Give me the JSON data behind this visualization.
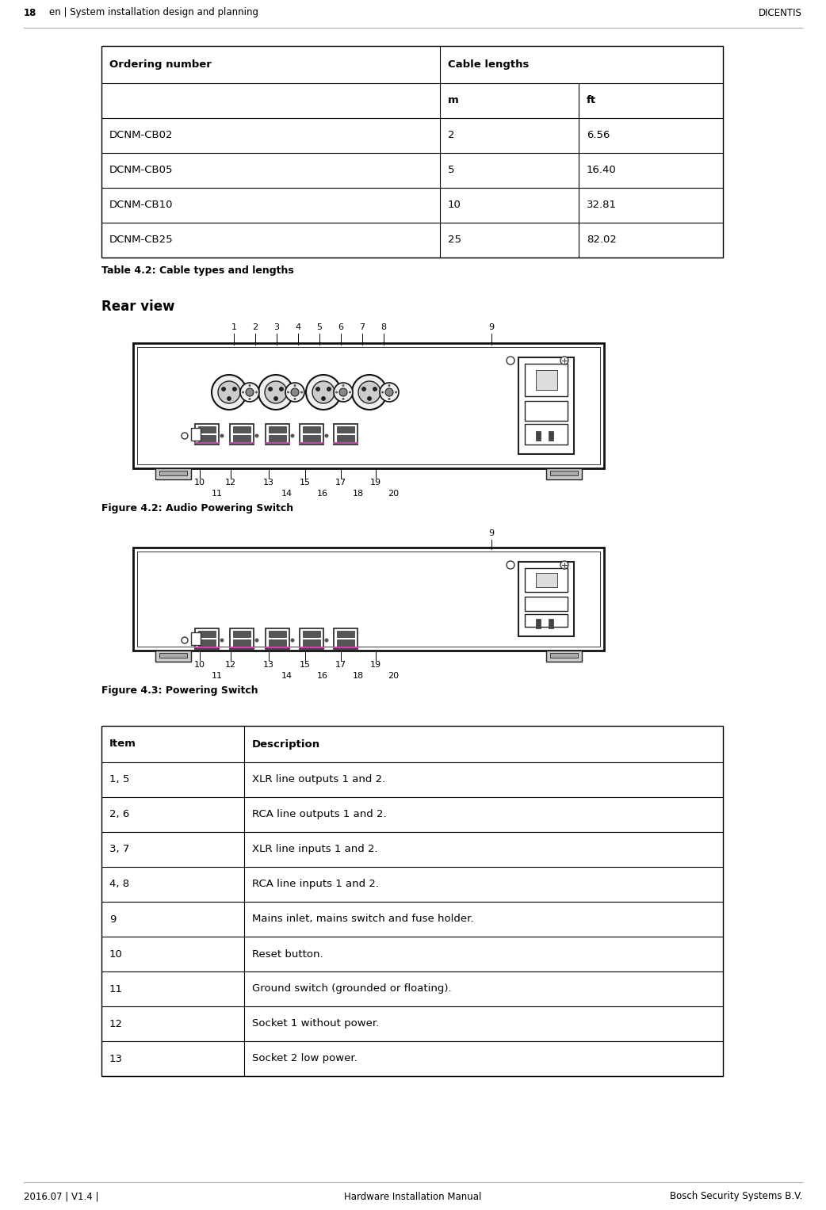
{
  "page_number": "18",
  "header_left": "en | System installation design and planning",
  "header_right": "DICENTIS",
  "footer_left": "2016.07 | V1.4 |",
  "footer_center": "Hardware Installation Manual",
  "footer_right": "Bosch Security Systems B.V.",
  "table1_col1_header": "Ordering number",
  "table1_col2_header": "Cable lengths",
  "table1_sub_m": "m",
  "table1_sub_ft": "ft",
  "table1_rows": [
    [
      "DCNM-CB02",
      "2",
      "6.56"
    ],
    [
      "DCNM-CB05",
      "5",
      "16.40"
    ],
    [
      "DCNM-CB10",
      "10",
      "32.81"
    ],
    [
      "DCNM-CB25",
      "25",
      "82.02"
    ]
  ],
  "table1_caption": "Table 4.2: Cable types and lengths",
  "section_rear_view": "Rear view",
  "fig42_caption": "Figure 4.2: Audio Powering Switch",
  "fig43_caption": "Figure 4.3: Powering Switch",
  "table2_headers": [
    "Item",
    "Description"
  ],
  "table2_rows": [
    [
      "1, 5",
      "XLR line outputs 1 and 2."
    ],
    [
      "2, 6",
      "RCA line outputs 1 and 2."
    ],
    [
      "3, 7",
      "XLR line inputs 1 and 2."
    ],
    [
      "4, 8",
      "RCA line inputs 1 and 2."
    ],
    [
      "9",
      "Mains inlet, mains switch and fuse holder."
    ],
    [
      "10",
      "Reset button."
    ],
    [
      "11",
      "Ground switch (grounded or floating)."
    ],
    [
      "12",
      "Socket 1 without power."
    ],
    [
      "13",
      "Socket 2 low power."
    ]
  ],
  "bg_color": "#ffffff",
  "table_border_color": "#000000",
  "text_color": "#000000",
  "fig42_nums_above": [
    [
      295,
      "1"
    ],
    [
      322,
      "2"
    ],
    [
      349,
      "3"
    ],
    [
      376,
      "4"
    ],
    [
      403,
      "5"
    ],
    [
      430,
      "6"
    ],
    [
      457,
      "7"
    ],
    [
      484,
      "8"
    ],
    [
      620,
      "9"
    ]
  ],
  "fig42_nums_row1": [
    [
      252,
      "10"
    ],
    [
      291,
      "12"
    ],
    [
      339,
      "13"
    ],
    [
      385,
      "15"
    ],
    [
      430,
      "17"
    ],
    [
      474,
      "19"
    ]
  ],
  "fig42_nums_row2": [
    [
      274,
      "11"
    ],
    [
      362,
      "14"
    ],
    [
      407,
      "16"
    ],
    [
      452,
      "18"
    ],
    [
      496,
      "20"
    ]
  ],
  "fig43_nums_row1": [
    [
      252,
      "10"
    ],
    [
      291,
      "12"
    ],
    [
      339,
      "13"
    ],
    [
      385,
      "15"
    ],
    [
      430,
      "17"
    ],
    [
      474,
      "19"
    ]
  ],
  "fig43_nums_row2": [
    [
      274,
      "11"
    ],
    [
      362,
      "14"
    ],
    [
      407,
      "16"
    ],
    [
      452,
      "18"
    ],
    [
      496,
      "20"
    ]
  ]
}
